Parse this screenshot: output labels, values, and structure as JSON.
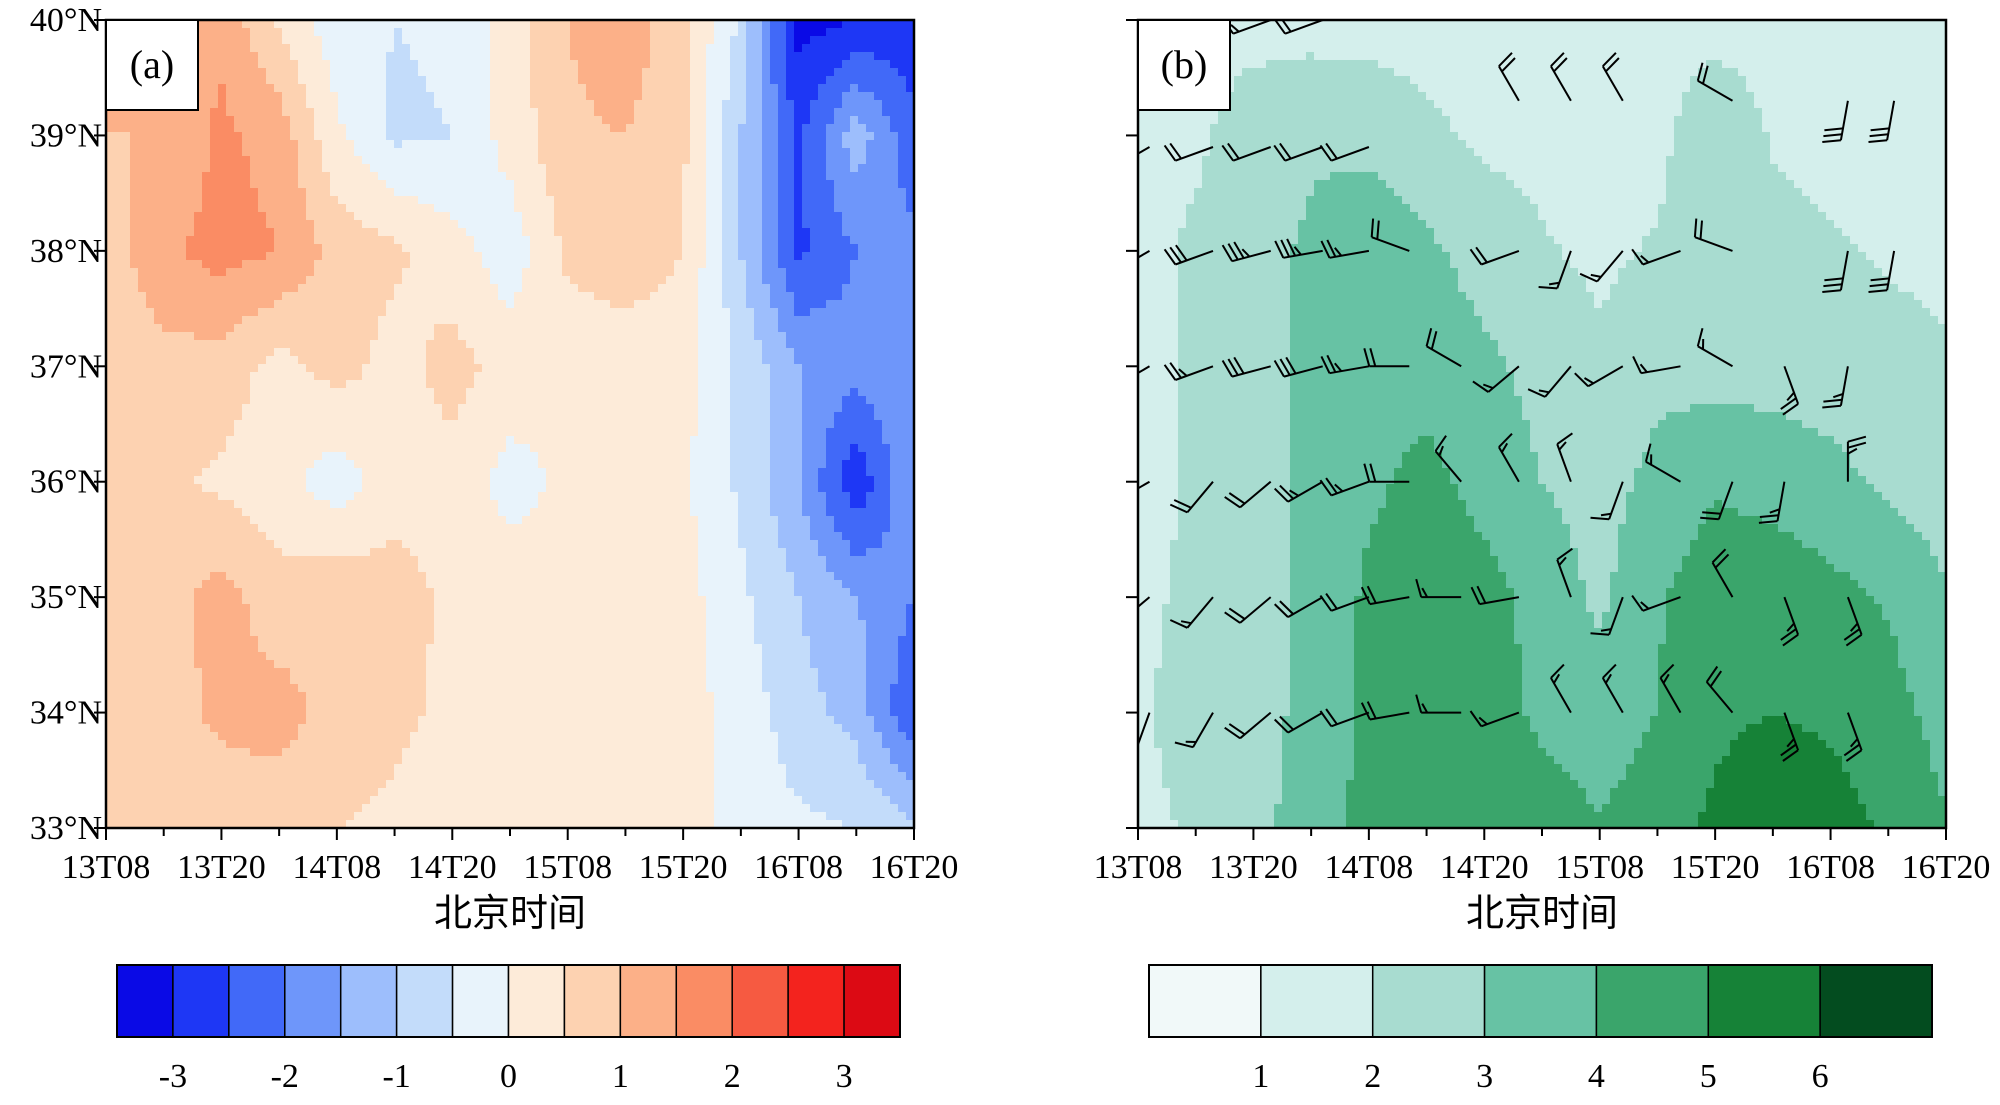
{
  "chart_data": [
    {
      "type": "heatmap",
      "panel_label": "(a)",
      "xlabel": "北京时间",
      "x_ticks": [
        "13T08",
        "13T20",
        "14T08",
        "14T20",
        "15T08",
        "15T20",
        "16T08",
        "16T20"
      ],
      "y_ticks": [
        "33°N",
        "34°N",
        "35°N",
        "36°N",
        "37°N",
        "38°N",
        "39°N",
        "40°N"
      ],
      "ylim": [
        33,
        40
      ],
      "colorbar": {
        "levels": [
          -3.5,
          -3,
          -2.5,
          -2,
          -1.5,
          -1,
          -0.5,
          0,
          0.5,
          1,
          1.5,
          2,
          2.5,
          3,
          3.5
        ],
        "colors": [
          "#0a0ae6",
          "#1e37f5",
          "#4169f8",
          "#6e96fa",
          "#9dbefc",
          "#c3dcfa",
          "#e8f3fb",
          "#fdebd9",
          "#fdd2b1",
          "#fcb088",
          "#fa8c64",
          "#f65a41",
          "#f3231e",
          "#dc0a14"
        ],
        "labels": [
          "-3",
          "-2",
          "-1",
          "0",
          "1",
          "2",
          "3"
        ],
        "label_values": [
          -3,
          -2,
          -1,
          0,
          1,
          2,
          3
        ]
      },
      "grid": {
        "times": [
          "13T08",
          "13T14",
          "13T20",
          "14T02",
          "14T08",
          "14T14",
          "14T20",
          "15T02",
          "15T08",
          "15T14",
          "15T20",
          "16T02",
          "16T08",
          "16T14",
          "16T20"
        ],
        "lats": [
          40,
          39,
          38,
          37,
          36,
          35,
          34,
          33
        ],
        "values": [
          [
            1.4,
            1.6,
            1.4,
            0.4,
            -0.3,
            -0.5,
            -0.4,
            0.2,
            1.0,
            1.4,
            0.6,
            -0.6,
            -3.2,
            -3.0,
            -2.8
          ],
          [
            1.0,
            1.0,
            1.6,
            1.3,
            0.1,
            -0.6,
            -0.5,
            0.2,
            0.9,
            1.0,
            0.6,
            -1.0,
            -2.6,
            -1.2,
            -2.4
          ],
          [
            0.7,
            1.4,
            1.7,
            1.5,
            0.8,
            0.6,
            0.2,
            -0.3,
            0.6,
            0.8,
            0.5,
            -1.0,
            -2.6,
            -2.0,
            -1.8
          ],
          [
            0.6,
            0.8,
            0.8,
            0.3,
            0.7,
            0.3,
            0.7,
            0.3,
            0.2,
            0.2,
            0.2,
            -0.6,
            -1.5,
            -1.8,
            -1.5
          ],
          [
            0.6,
            0.6,
            0.4,
            0.2,
            -0.3,
            0.3,
            0.3,
            -0.2,
            0.1,
            0.1,
            0.1,
            -0.6,
            -1.5,
            -2.9,
            -1.5
          ],
          [
            0.8,
            0.8,
            1.2,
            0.7,
            0.9,
            0.7,
            0.4,
            0.3,
            0.3,
            0.2,
            0.2,
            -0.4,
            -1.0,
            -1.5,
            -2.0
          ],
          [
            0.6,
            0.8,
            1.1,
            1.2,
            0.8,
            0.6,
            0.4,
            0.3,
            0.2,
            0.2,
            0.2,
            -0.2,
            -0.8,
            -1.2,
            -2.5
          ],
          [
            0.6,
            0.8,
            0.7,
            0.7,
            0.5,
            0.4,
            0.3,
            0.2,
            0.2,
            0.2,
            0.2,
            -0.2,
            -0.4,
            -0.5,
            -0.9
          ]
        ]
      }
    },
    {
      "type": "heatmap",
      "panel_label": "(b)",
      "xlabel": "北京时间",
      "x_ticks": [
        "13T08",
        "13T20",
        "14T08",
        "14T20",
        "15T08",
        "15T20",
        "16T08",
        "16T20"
      ],
      "y_ticks": [
        "33°N",
        "34°N",
        "35°N",
        "36°N",
        "37°N",
        "38°N",
        "39°N",
        "40°N"
      ],
      "ylim": [
        33,
        40
      ],
      "colorbar": {
        "levels": [
          0,
          1,
          2,
          3,
          4,
          5,
          6,
          7
        ],
        "colors": [
          "#f1f9f9",
          "#d4efec",
          "#a8dcd0",
          "#67c2a4",
          "#3aa56b",
          "#168237",
          "#034c1f"
        ],
        "labels": [
          "1",
          "2",
          "3",
          "4",
          "5",
          "6"
        ],
        "label_values": [
          1,
          2,
          3,
          4,
          5,
          6
        ]
      },
      "grid": {
        "times": [
          "13T08",
          "13T14",
          "13T20",
          "14T02",
          "14T08",
          "14T14",
          "14T20",
          "15T02",
          "15T08",
          "15T14",
          "15T20",
          "16T02",
          "16T08",
          "16T14",
          "16T20"
        ],
        "lats": [
          40,
          39,
          38,
          37,
          36,
          35,
          34,
          33
        ],
        "values": [
          [
            1.5,
            1.6,
            1.6,
            1.6,
            1.6,
            1.6,
            1.6,
            1.6,
            1.6,
            1.6,
            1.6,
            1.6,
            1.6,
            1.3,
            1.0
          ],
          [
            1.6,
            1.8,
            2.6,
            2.9,
            2.7,
            2.2,
            1.8,
            1.7,
            1.6,
            1.7,
            2.8,
            1.9,
            1.7,
            1.6,
            1.3
          ],
          [
            1.6,
            2.2,
            2.8,
            3.1,
            3.7,
            3.2,
            2.6,
            2.1,
            1.8,
            2.1,
            2.7,
            2.3,
            2.1,
            1.9,
            1.8
          ],
          [
            1.4,
            2.2,
            2.7,
            3.2,
            3.6,
            3.6,
            3.2,
            2.7,
            2.2,
            2.7,
            2.6,
            2.6,
            2.5,
            2.3,
            2.1
          ],
          [
            1.7,
            2.1,
            2.6,
            3.3,
            3.8,
            4.3,
            3.6,
            3.0,
            2.6,
            3.3,
            3.9,
            3.6,
            3.3,
            2.8,
            2.5
          ],
          [
            1.8,
            2.2,
            2.6,
            3.2,
            4.2,
            4.8,
            4.4,
            3.6,
            2.8,
            3.9,
            4.6,
            4.7,
            4.3,
            3.9,
            3.1
          ],
          [
            1.9,
            2.3,
            2.6,
            3.3,
            4.2,
            4.7,
            4.5,
            3.8,
            3.4,
            4.0,
            4.8,
            5.0,
            4.8,
            4.4,
            3.6
          ],
          [
            1.8,
            2.1,
            2.6,
            3.6,
            4.3,
            4.6,
            4.7,
            4.5,
            4.1,
            4.6,
            5.2,
            5.8,
            5.5,
            4.8,
            4.1
          ]
        ]
      },
      "wind_barbs": {
        "times": [
          0.2,
          1.3,
          2.3,
          3.2,
          4.0,
          4.7,
          5.6,
          6.6,
          7.5,
          8.4,
          9.4,
          10.3,
          11.2,
          12.3,
          13.1
        ],
        "rows": [
          {
            "lat": 40,
            "speeds": [
              0,
              6,
              6,
              8,
              0,
              0,
              0,
              0,
              0,
              0,
              0,
              0,
              0,
              0,
              0
            ],
            "dirs": [
              0,
              250,
              250,
              250,
              0,
              0,
              0,
              0,
              0,
              0,
              0,
              0,
              0,
              0,
              0
            ]
          },
          {
            "lat": 39.3,
            "speeds": [
              0,
              0,
              0,
              0,
              0,
              0,
              0,
              8,
              8,
              8,
              0,
              8,
              0,
              12,
              12
            ],
            "dirs": [
              0,
              0,
              0,
              0,
              0,
              0,
              0,
              330,
              330,
              330,
              0,
              300,
              0,
              190,
              190
            ]
          },
          {
            "lat": 38.9,
            "speeds": [
              8,
              8,
              8,
              8,
              8,
              0,
              0,
              0,
              0,
              0,
              0,
              0,
              0,
              0,
              0
            ],
            "dirs": [
              240,
              250,
              250,
              250,
              250,
              0,
              0,
              0,
              0,
              0,
              0,
              0,
              0,
              0,
              0
            ]
          },
          {
            "lat": 38.0,
            "speeds": [
              10,
              12,
              14,
              14,
              10,
              8,
              0,
              8,
              6,
              6,
              6,
              8,
              0,
              12,
              12
            ],
            "dirs": [
              240,
              250,
              255,
              260,
              260,
              290,
              0,
              250,
              200,
              220,
              250,
              290,
              0,
              190,
              190
            ]
          },
          {
            "lat": 37.0,
            "speeds": [
              8,
              10,
              12,
              12,
              10,
              8,
              8,
              6,
              6,
              6,
              6,
              6,
              10,
              10,
              0
            ],
            "dirs": [
              240,
              250,
              255,
              255,
              260,
              270,
              300,
              230,
              220,
              240,
              260,
              300,
              160,
              190,
              0
            ]
          },
          {
            "lat": 36.0,
            "speeds": [
              8,
              8,
              8,
              10,
              10,
              8,
              6,
              6,
              6,
              6,
              6,
              8,
              10,
              10,
              0
            ],
            "dirs": [
              240,
              220,
              230,
              240,
              250,
              270,
              320,
              330,
              340,
              200,
              300,
              200,
              190,
              0,
              0
            ]
          },
          {
            "lat": 35.0,
            "speeds": [
              6,
              6,
              8,
              8,
              8,
              8,
              6,
              8,
              6,
              6,
              6,
              8,
              10,
              10,
              0
            ],
            "dirs": [
              230,
              220,
              230,
              240,
              250,
              260,
              270,
              260,
              340,
              200,
              250,
              330,
              160,
              160,
              0
            ]
          },
          {
            "lat": 34.0,
            "speeds": [
              6,
              6,
              8,
              8,
              8,
              8,
              6,
              6,
              6,
              6,
              6,
              8,
              10,
              10,
              0
            ],
            "dirs": [
              200,
              210,
              230,
              240,
              250,
              260,
              270,
              250,
              330,
              330,
              330,
              320,
              160,
              160,
              0
            ]
          }
        ]
      }
    }
  ]
}
